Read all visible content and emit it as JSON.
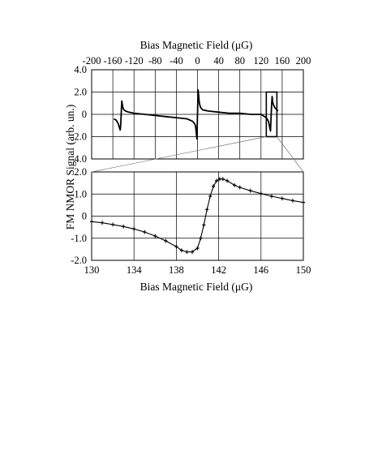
{
  "figure": {
    "ylabel": "FM NMOR Signal  (arb. un.)"
  },
  "chart_data": [
    {
      "type": "line",
      "panel": "top",
      "title": "",
      "xlabel": "Bias Magnetic Field (μG)",
      "xlabel_position": "top",
      "ylabel": "FM NMOR Signal  (arb. un.)",
      "xlim": [
        -200,
        200
      ],
      "ylim": [
        -4.0,
        4.0
      ],
      "x_ticks": [
        -200,
        -160,
        -120,
        -80,
        -40,
        0,
        40,
        80,
        120,
        160,
        200
      ],
      "x_tick_labels": [
        "-200",
        "-160",
        "-120",
        "-80",
        "-40",
        "0",
        "40",
        "80",
        "120",
        "160",
        "200"
      ],
      "y_ticks": [
        -4,
        -2,
        0,
        2,
        4
      ],
      "y_tick_labels": [
        "-4.0",
        "-2.0",
        "0",
        "2.0",
        "4.0"
      ],
      "grid": true,
      "legend": "none",
      "zoom_box": {
        "x": [
          130,
          150
        ],
        "y": [
          -2.0,
          2.0
        ]
      },
      "series": [
        {
          "x": [
            -158,
            -154,
            -150,
            -148,
            -146,
            -145,
            -144,
            -143,
            -142,
            -141,
            -139,
            -136,
            -130,
            -120,
            -100,
            -80,
            -60,
            -40,
            -20,
            -10,
            -6,
            -4,
            -3,
            -2,
            -1,
            0,
            1,
            2,
            3,
            4,
            6,
            10,
            20,
            40,
            60,
            80,
            100,
            120,
            130,
            134,
            138,
            139,
            140,
            141,
            142,
            144,
            146,
            148,
            150,
            152
          ],
          "values": [
            -0.4,
            -0.5,
            -0.8,
            -1.1,
            -1.4,
            -0.9,
            0.2,
            1.2,
            0.9,
            0.6,
            0.4,
            0.3,
            0.2,
            0.1,
            0.0,
            -0.1,
            -0.2,
            -0.3,
            -0.4,
            -0.6,
            -0.8,
            -1.0,
            -1.3,
            -1.8,
            -2.2,
            0.0,
            2.2,
            1.8,
            1.2,
            0.9,
            0.6,
            0.4,
            0.3,
            0.2,
            0.1,
            0.1,
            0.0,
            0.0,
            -0.3,
            -0.6,
            -1.5,
            -0.2,
            0.9,
            1.6,
            1.1,
            0.8,
            0.6,
            0.5,
            0.4,
            0.3
          ]
        }
      ]
    },
    {
      "type": "line",
      "panel": "bottom",
      "title": "",
      "xlabel": "Bias Magnetic Field (μG)",
      "ylabel": "FM NMOR Signal  (arb. un.)",
      "xlim": [
        130,
        150
      ],
      "ylim": [
        -2.0,
        2.0
      ],
      "x_ticks": [
        130,
        134,
        138,
        142,
        146,
        150
      ],
      "x_tick_labels": [
        "130",
        "134",
        "138",
        "142",
        "146",
        "150"
      ],
      "y_ticks": [
        -2,
        -1,
        0,
        1,
        2
      ],
      "y_tick_labels": [
        "-2.0",
        "-1.0",
        "0",
        "1.0",
        "2.0"
      ],
      "grid": true,
      "legend": "none",
      "error_bars": true,
      "series": [
        {
          "x": [
            130,
            131,
            132,
            133,
            134,
            135,
            136,
            137,
            138,
            138.5,
            139,
            139.5,
            140,
            140.3,
            140.6,
            140.9,
            141.2,
            141.5,
            141.8,
            142.1,
            142.4,
            142.8,
            143.5,
            144,
            145,
            146,
            147,
            148,
            149,
            150
          ],
          "values": [
            -0.25,
            -0.3,
            -0.38,
            -0.47,
            -0.58,
            -0.72,
            -0.9,
            -1.12,
            -1.38,
            -1.55,
            -1.62,
            -1.62,
            -1.45,
            -1.0,
            -0.4,
            0.3,
            0.9,
            1.35,
            1.6,
            1.68,
            1.68,
            1.6,
            1.4,
            1.3,
            1.15,
            1.02,
            0.9,
            0.8,
            0.7,
            0.62
          ]
        }
      ]
    }
  ]
}
